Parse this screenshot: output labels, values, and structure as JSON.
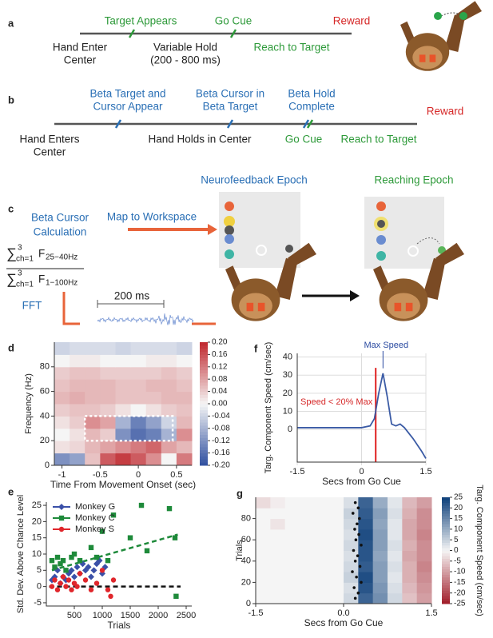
{
  "panels": {
    "a": {
      "label": "a",
      "above": [
        "Target Appears",
        "Go Cue",
        "Reward"
      ],
      "below": [
        "Hand Enter",
        "Center",
        "Variable Hold",
        "(200 - 800 ms)",
        "Reach to Target"
      ]
    },
    "b": {
      "label": "b",
      "above": [
        "Beta Target and",
        "Cursor Appear",
        "Beta Cursor in",
        "Beta Target",
        "Beta Hold",
        "Complete",
        "Reward"
      ],
      "below": [
        "Hand Enters",
        "Center",
        "Hand Holds in Center",
        "Go Cue",
        "Reach to Target"
      ]
    },
    "c": {
      "label": "c",
      "epochs": [
        "Neurofeedback Epoch",
        "Reaching Epoch"
      ],
      "calc": [
        "Beta Cursor",
        "Calculation"
      ],
      "map": "Map to Workspace",
      "numerator": [
        "∑",
        "3",
        "ch=1",
        "F",
        "25−40Hz"
      ],
      "denominator": [
        "∑",
        "3",
        "ch=1",
        "F",
        "1−100Hz"
      ],
      "fft": "FFT",
      "window": "200 ms"
    }
  },
  "chart_data": [
    {
      "type": "heatmap",
      "panel_label": "d",
      "x_label": "Time From Movement Onset (sec)",
      "y_label": "Frequency (Hz)",
      "x": [
        -1,
        -0.8,
        -0.6,
        -0.4,
        -0.2,
        0,
        0.2,
        0.4,
        0.6
      ],
      "y": [
        5,
        15,
        25,
        35,
        45,
        55,
        65,
        75,
        85,
        95
      ],
      "values": [
        [
          -0.12,
          -0.1,
          0.05,
          0.15,
          0.18,
          0.15,
          0.1,
          0.0,
          0.12
        ],
        [
          0.02,
          0.03,
          0.06,
          0.08,
          0.1,
          0.12,
          0.14,
          0.08,
          0.06
        ],
        [
          0.0,
          0.02,
          0.06,
          0.04,
          -0.12,
          -0.16,
          -0.14,
          -0.08,
          0.1
        ],
        [
          0.02,
          0.04,
          0.1,
          0.08,
          -0.08,
          -0.14,
          -0.1,
          -0.04,
          0.06
        ],
        [
          0.04,
          0.05,
          0.05,
          0.04,
          0.02,
          0.0,
          0.02,
          0.04,
          0.05
        ],
        [
          0.06,
          0.07,
          0.06,
          0.06,
          0.05,
          0.05,
          0.05,
          0.06,
          0.06
        ],
        [
          0.05,
          0.06,
          0.06,
          0.06,
          0.05,
          0.05,
          0.06,
          0.06,
          0.05
        ],
        [
          0.04,
          0.05,
          0.05,
          0.04,
          0.04,
          0.04,
          0.04,
          0.05,
          0.04
        ],
        [
          0.0,
          0.01,
          0.01,
          0.0,
          0.0,
          0.0,
          0.01,
          0.01,
          0.0
        ],
        [
          -0.04,
          -0.03,
          -0.03,
          -0.03,
          -0.04,
          -0.03,
          -0.03,
          -0.03,
          -0.04
        ]
      ],
      "xlim": [
        -1.1,
        0.7
      ],
      "ylim": [
        0,
        100
      ],
      "xticks": [
        -1,
        -0.5,
        0,
        0.5
      ],
      "yticks": [
        0,
        20,
        40,
        60,
        80
      ],
      "clim": [
        -0.2,
        0.2
      ],
      "colormap": [
        "#2f4f9f",
        "#f5f5f5",
        "#c0282e"
      ],
      "cticks": [
        {
          "value": 0.2,
          "label": "0.20"
        },
        {
          "value": 0.16,
          "label": "0.16"
        },
        {
          "value": 0.12,
          "label": "0.12"
        },
        {
          "value": 0.08,
          "label": "0.08"
        },
        {
          "value": 0.04,
          "label": "0.04"
        },
        {
          "value": 0,
          "label": "0.00"
        },
        {
          "value": -0.04,
          "label": "-0.04"
        },
        {
          "value": -0.08,
          "label": "-0.08"
        },
        {
          "value": -0.12,
          "label": "-0.12"
        },
        {
          "value": -0.16,
          "label": "-0.16"
        },
        {
          "value": -0.2,
          "label": "-0.20"
        }
      ],
      "highlight_box": {
        "x": [
          -0.7,
          0.45
        ],
        "y": [
          20,
          40
        ]
      }
    },
    {
      "type": "scatter",
      "panel_label": "e",
      "x_label": "Trials",
      "y_label": "Std. Dev. Above Chance Level",
      "legend": "upper-left",
      "series": [
        {
          "name": "Monkey G",
          "color": "#3a50a8",
          "marker": "diamond",
          "x": [
            100,
            150,
            200,
            250,
            300,
            350,
            400,
            450,
            500,
            550,
            600,
            650,
            700,
            750,
            800,
            850,
            900,
            950,
            1000,
            1050
          ],
          "values": [
            2,
            3,
            5,
            1,
            3,
            2,
            4,
            5,
            3,
            6,
            4,
            7,
            5,
            6,
            3,
            5,
            7,
            8,
            4,
            6
          ]
        },
        {
          "name": "Monkey C",
          "color": "#1e8a3a",
          "marker": "square",
          "x": [
            100,
            150,
            200,
            250,
            300,
            350,
            450,
            500,
            600,
            800,
            900,
            1000,
            1100,
            1200,
            1500,
            1700,
            1800,
            2200,
            2300,
            2320
          ],
          "values": [
            8,
            6,
            9,
            7,
            8,
            5,
            9,
            10,
            8,
            12,
            9,
            17,
            8,
            22,
            15,
            25,
            11,
            24,
            15,
            -3
          ]
        },
        {
          "name": "Monkey S",
          "color": "#e0262b",
          "marker": "circle",
          "x": [
            100,
            150,
            200,
            250,
            300,
            350,
            400,
            450,
            500,
            550,
            600,
            700,
            800,
            900,
            1000,
            1100,
            1150,
            1200
          ],
          "values": [
            0,
            2,
            -1,
            1,
            3,
            0,
            2,
            -1,
            1,
            0,
            4,
            2,
            -1,
            1,
            5,
            -1,
            -3,
            2
          ]
        }
      ],
      "trend_lines": [
        {
          "color": "#1e8a3a",
          "x": [
            100,
            2350
          ],
          "y": [
            5,
            16
          ]
        },
        {
          "color": "#111",
          "x": [
            50,
            2400
          ],
          "y": [
            0,
            0
          ]
        }
      ],
      "xlim": [
        0,
        2600
      ],
      "ylim": [
        -6,
        26
      ],
      "xticks": [
        500,
        1000,
        1500,
        2000,
        2500
      ],
      "yticks": [
        -5,
        0,
        5,
        10,
        15,
        20,
        25
      ]
    },
    {
      "type": "line",
      "panel_label": "f",
      "x_label": "Secs from Go Cue",
      "y_label": "Targ. Component Speed (cm/sec)",
      "grid": true,
      "color": "#3b5ba5",
      "x": [
        -1.5,
        -1.2,
        -0.9,
        -0.6,
        -0.3,
        0,
        0.2,
        0.3,
        0.4,
        0.5,
        0.6,
        0.7,
        0.8,
        0.9,
        1.0,
        1.2,
        1.4,
        1.5
      ],
      "values": [
        1,
        1,
        1,
        1,
        1,
        1,
        2,
        6,
        20,
        31,
        18,
        3,
        2,
        3,
        1,
        -5,
        -12,
        -16
      ],
      "xlim": [
        -1.5,
        1.5
      ],
      "ylim": [
        -18,
        42
      ],
      "xticks": [
        -1.5,
        0,
        1.5
      ],
      "yticks": [
        0,
        10,
        20,
        30,
        40
      ],
      "vline": {
        "x": 0.33,
        "color": "#e02020"
      },
      "annotations": [
        "Max Speed",
        "Speed < 20% Max"
      ]
    },
    {
      "type": "heatmap",
      "panel_label": "g",
      "x_label": "Secs from Go Cue",
      "y_label": "Trials",
      "colorbar_label": "Targ. Component Speed (cm/sec)",
      "x": [
        -1.375,
        -1.125,
        -0.875,
        -0.625,
        -0.375,
        -0.125,
        0.125,
        0.375,
        0.625,
        0.875,
        1.125,
        1.375
      ],
      "y": [
        5,
        15,
        25,
        35,
        45,
        55,
        65,
        75,
        85,
        95
      ],
      "values": [
        [
          0,
          0,
          0,
          0,
          0,
          0,
          4,
          20,
          14,
          4,
          -6,
          -10
        ],
        [
          0,
          0,
          0,
          0,
          0,
          0,
          3,
          22,
          13,
          3,
          -7,
          -11
        ],
        [
          0,
          0,
          0,
          0,
          0,
          0,
          5,
          23,
          12,
          2,
          -8,
          -12
        ],
        [
          0,
          0,
          0,
          0,
          0,
          0,
          4,
          21,
          12,
          3,
          -8,
          -13
        ],
        [
          0,
          0,
          0,
          0,
          0,
          0,
          3,
          22,
          11,
          2,
          -9,
          -12
        ],
        [
          0,
          0,
          0,
          0,
          0,
          0,
          4,
          22,
          12,
          3,
          -8,
          -12
        ],
        [
          0,
          0,
          0,
          0,
          0,
          0,
          3,
          23,
          12,
          2,
          -9,
          -13
        ],
        [
          0,
          -2,
          0,
          0,
          0,
          0,
          4,
          22,
          11,
          2,
          -9,
          -12
        ],
        [
          0,
          0,
          0,
          0,
          0,
          0,
          5,
          21,
          12,
          3,
          -8,
          -12
        ],
        [
          -3,
          -1,
          0,
          0,
          0,
          0,
          3,
          20,
          10,
          2,
          -7,
          -10
        ]
      ],
      "markers": {
        "x": [
          0.2,
          0.25,
          0.18,
          0.3,
          0.22,
          0.15,
          0.28,
          0.2,
          0.24,
          0.17,
          0.3,
          0.21,
          0.26,
          0.19,
          0.23,
          0.27,
          0.16,
          0.25,
          0.2
        ],
        "y": [
          5,
          10,
          15,
          20,
          25,
          30,
          35,
          40,
          45,
          50,
          55,
          60,
          65,
          70,
          75,
          80,
          85,
          90,
          95
        ]
      },
      "xlim": [
        -1.5,
        1.5
      ],
      "ylim": [
        0,
        100
      ],
      "xticks": [
        -1.5,
        {
          "value": 0,
          "label": "0.0"
        },
        1.5
      ],
      "yticks": [
        0,
        20,
        40,
        60,
        80
      ],
      "clim": [
        -25,
        25
      ],
      "colormap": [
        "#a01c28",
        "#f5f5f5",
        "#0d3f7a"
      ],
      "cticks": [
        25,
        20,
        15,
        10,
        5,
        0,
        -5,
        -10,
        -15,
        -20,
        -25
      ]
    }
  ]
}
